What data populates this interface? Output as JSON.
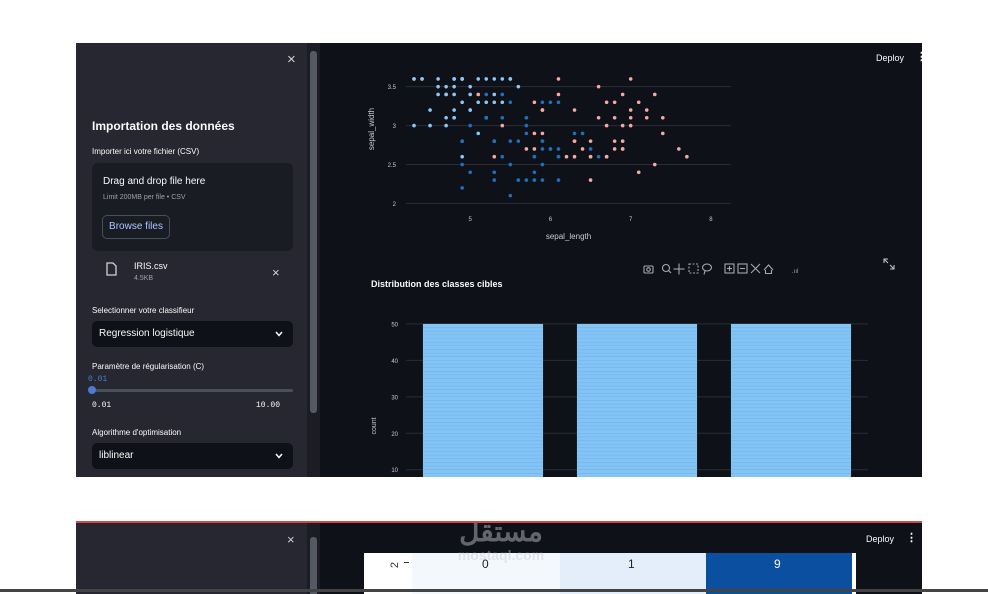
{
  "app": {
    "deploy_label": "Deploy",
    "menu_glyph": "⋮",
    "close_glyph": "×"
  },
  "sidebar": {
    "title": "Importation des données",
    "upload_label": "Importer ici votre fichier (CSV)",
    "dropzone": {
      "title": "Drag and drop file here",
      "limit": "Limit 200MB per file • CSV",
      "browse": "Browse files"
    },
    "file": {
      "name": "IRIS.csv",
      "size": "4.5KB"
    },
    "classifier": {
      "label": "Selectionner votre classifieur",
      "value": "Regression logistique"
    },
    "slider": {
      "label": "Paramètre de régularisation (C)",
      "value": "0.01",
      "min": "0.01",
      "max": "10.00",
      "fraction": 0
    },
    "optim": {
      "label": "Algorithme d'optimisation",
      "value": "liblinear"
    }
  },
  "scatter": {
    "xlabel": "sepal_length",
    "ylabel": "sepal_width",
    "x_ticks": [
      "5",
      "6",
      "7",
      "8"
    ],
    "y_ticks": [
      "2",
      "2.5",
      "3",
      "3.5"
    ],
    "xlim": [
      4.2,
      8.25
    ],
    "ylim": [
      1.8,
      3.65
    ],
    "colors": {
      "blue_dark": "#1f6fbf",
      "blue_light": "#8ec5f5",
      "pink": "#f5a9a5"
    }
  },
  "toolbar": {
    "icons": [
      "camera-icon",
      "zoom-icon",
      "pan-icon",
      "box-select-icon",
      "lasso-icon",
      "zoom-in-icon",
      "zoom-out-icon",
      "autoscale-icon",
      "reset-axes-icon",
      "plotly-logo-icon"
    ],
    "fullscreen_icon": "expand-icon"
  },
  "chart_data": {
    "type": "bar",
    "title": "Distribution des classes cibles",
    "xlabel": "",
    "ylabel": "count",
    "categories": [
      "",
      "",
      ""
    ],
    "values": [
      50,
      50,
      50
    ],
    "y_ticks": [
      "10",
      "20",
      "30",
      "40",
      "50"
    ],
    "ylim": [
      8,
      53
    ],
    "color": "#84c4f5"
  },
  "matrix": {
    "row_label": "2",
    "cells": [
      "0",
      "1",
      "9"
    ],
    "colors": [
      "#f3f8fd",
      "#e3eefa",
      "#0b4fa0"
    ]
  },
  "watermark": {
    "arabic": "مستقل",
    "latin": "mostaql.com"
  }
}
